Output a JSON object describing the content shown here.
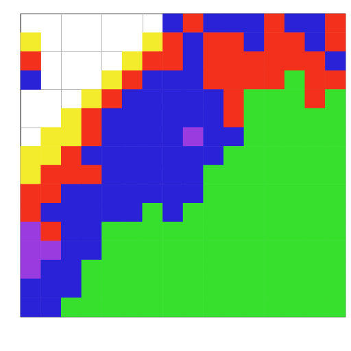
{
  "chart_data": {
    "type": "heatmap",
    "cells": [
      [
        null,
        null,
        null,
        null,
        null,
        null,
        null,
        0,
        2,
        0,
        0,
        0,
        2,
        0,
        0,
        2
      ],
      [
        3,
        null,
        null,
        null,
        null,
        null,
        3,
        2,
        0,
        2,
        2,
        0,
        2,
        2,
        0,
        2
      ],
      [
        2,
        null,
        null,
        null,
        null,
        3,
        2,
        2,
        0,
        2,
        2,
        2,
        2,
        2,
        2,
        0
      ],
      [
        0,
        null,
        null,
        null,
        3,
        2,
        0,
        0,
        0,
        2,
        2,
        2,
        2,
        4,
        2,
        2
      ],
      [
        null,
        null,
        null,
        3,
        2,
        0,
        0,
        0,
        0,
        0,
        2,
        4,
        4,
        4,
        2,
        4
      ],
      [
        null,
        null,
        3,
        2,
        0,
        0,
        0,
        0,
        0,
        0,
        2,
        4,
        4,
        4,
        4,
        4
      ],
      [
        null,
        3,
        3,
        2,
        0,
        0,
        0,
        0,
        1,
        0,
        0,
        4,
        4,
        4,
        4,
        4
      ],
      [
        3,
        3,
        2,
        0,
        0,
        0,
        0,
        0,
        0,
        0,
        4,
        4,
        4,
        4,
        4,
        4
      ],
      [
        3,
        2,
        2,
        2,
        0,
        0,
        0,
        0,
        0,
        4,
        4,
        4,
        4,
        4,
        4,
        4
      ],
      [
        2,
        2,
        0,
        0,
        0,
        0,
        0,
        0,
        0,
        4,
        4,
        4,
        4,
        4,
        4,
        4
      ],
      [
        2,
        0,
        0,
        0,
        0,
        0,
        4,
        0,
        4,
        4,
        4,
        4,
        4,
        4,
        4,
        4
      ],
      [
        1,
        2,
        0,
        0,
        4,
        4,
        4,
        4,
        4,
        4,
        4,
        4,
        4,
        4,
        4,
        4
      ],
      [
        1,
        1,
        0,
        0,
        4,
        4,
        4,
        4,
        4,
        4,
        4,
        4,
        4,
        4,
        4,
        4
      ],
      [
        1,
        0,
        0,
        4,
        4,
        4,
        4,
        4,
        4,
        4,
        4,
        4,
        4,
        4,
        4,
        4
      ],
      [
        0,
        0,
        0,
        4,
        4,
        4,
        4,
        4,
        4,
        4,
        4,
        4,
        4,
        4,
        4,
        4
      ],
      [
        0,
        0,
        4,
        4,
        4,
        4,
        4,
        4,
        4,
        4,
        4,
        4,
        4,
        4,
        4,
        4
      ]
    ],
    "zlim": [
      0,
      4
    ],
    "colors": [
      "#2a22d6",
      "#9a3be0",
      "#f2301c",
      "#f2ec2c",
      "#36e02c"
    ],
    "grid": true,
    "tick_labels": false
  }
}
